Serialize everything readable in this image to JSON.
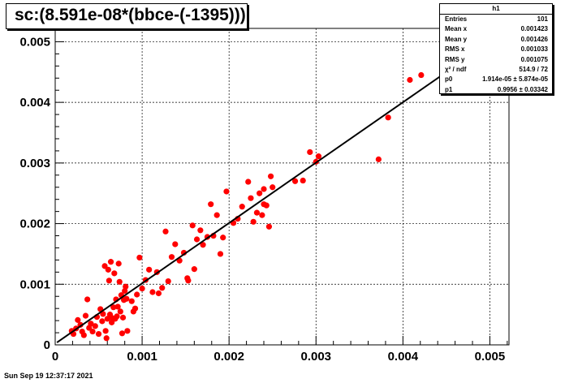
{
  "chart_title": "sc:(8.591e-08*(bbce-(-1395)))",
  "footer": "Sun Sep 19 12:37:17 2021",
  "stats": {
    "title": "h1",
    "rows": [
      {
        "label": "Entries",
        "value": "101"
      },
      {
        "label": "Mean x",
        "value": "0.001423"
      },
      {
        "label": "Mean y",
        "value": "0.001426"
      },
      {
        "label": "RMS x",
        "value": "0.001033"
      },
      {
        "label": "RMS y",
        "value": "0.001075"
      },
      {
        "label": "χ² / ndf",
        "value": "514.9 / 72"
      },
      {
        "label": "p0",
        "value": "1.914e-05 ± 5.874e-05"
      },
      {
        "label": "p1",
        "value": "0.9956 ± 0.03342"
      }
    ]
  },
  "colors": {
    "points": "#ff0000",
    "fit": "#000000"
  },
  "chart_data": {
    "type": "scatter",
    "title": "sc:(8.591e-08*(bbce-(-1395)))",
    "xlabel": "",
    "ylabel": "",
    "xlim": [
      0,
      0.00522
    ],
    "ylim": [
      0,
      0.00522
    ],
    "xticks": [
      "0",
      "0.001",
      "0.002",
      "0.003",
      "0.004",
      "0.005"
    ],
    "yticks": [
      "0",
      "0.001",
      "0.002",
      "0.003",
      "0.004",
      "0.005"
    ],
    "grid": true,
    "legend": "top-right",
    "series": [
      {
        "type": "scatter",
        "points": [
          [
            0.00019,
            0.00023
          ],
          [
            0.00021,
            0.00018
          ],
          [
            0.00024,
            0.00027
          ],
          [
            0.00026,
            0.00041
          ],
          [
            0.00029,
            0.00033
          ],
          [
            0.00031,
            0.00022
          ],
          [
            0.00033,
            0.00016
          ],
          [
            0.00035,
            0.00048
          ],
          [
            0.00037,
            0.00075
          ],
          [
            0.00039,
            0.00028
          ],
          [
            0.00041,
            0.00035
          ],
          [
            0.00043,
            0.00022
          ],
          [
            0.00046,
            0.00031
          ],
          [
            0.00048,
            0.00046
          ],
          [
            0.0005,
            0.00018
          ],
          [
            0.00052,
            0.00059
          ],
          [
            0.00054,
            0.00039
          ],
          [
            0.00055,
            0.00051
          ],
          [
            0.00057,
            0.0013
          ],
          [
            0.00058,
            0.00023
          ],
          [
            0.00059,
            0.00011
          ],
          [
            0.0006,
            0.00043
          ],
          [
            0.00061,
            0.00124
          ],
          [
            0.00062,
            0.00106
          ],
          [
            0.00063,
            0.0005
          ],
          [
            0.00064,
            0.00137
          ],
          [
            0.00065,
            0.00037
          ],
          [
            0.00066,
            0.00044
          ],
          [
            0.00067,
            0.00062
          ],
          [
            0.00068,
            0.00118
          ],
          [
            0.00069,
            0.00043
          ],
          [
            0.0007,
            0.00075
          ],
          [
            0.00071,
            0.00047
          ],
          [
            0.00072,
            0.00063
          ],
          [
            0.00073,
            0.00134
          ],
          [
            0.00074,
            0.00104
          ],
          [
            0.00075,
            0.00055
          ],
          [
            0.00076,
            0.00082
          ],
          [
            0.00077,
            0.00019
          ],
          [
            0.00078,
            0.00045
          ],
          [
            0.00079,
            0.00074
          ],
          [
            0.0008,
            0.00089
          ],
          [
            0.00081,
            0.00096
          ],
          [
            0.00082,
            0.00076
          ],
          [
            0.00083,
            0.00023
          ],
          [
            0.00088,
            0.00072
          ],
          [
            0.0009,
            0.00055
          ],
          [
            0.00092,
            0.0006
          ],
          [
            0.00094,
            0.00083
          ],
          [
            0.00097,
            0.00144
          ],
          [
            0.001,
            0.00093
          ],
          [
            0.00104,
            0.00107
          ],
          [
            0.00108,
            0.00124
          ],
          [
            0.00112,
            0.00087
          ],
          [
            0.00117,
            0.0012
          ],
          [
            0.00119,
            0.00085
          ],
          [
            0.00123,
            0.00094
          ],
          [
            0.00127,
            0.00187
          ],
          [
            0.0013,
            0.00105
          ],
          [
            0.00134,
            0.00145
          ],
          [
            0.00138,
            0.00166
          ],
          [
            0.00143,
            0.00139
          ],
          [
            0.00148,
            0.00152
          ],
          [
            0.00152,
            0.0011
          ],
          [
            0.00153,
            0.00106
          ],
          [
            0.00158,
            0.00197
          ],
          [
            0.0016,
            0.00125
          ],
          [
            0.00163,
            0.00174
          ],
          [
            0.00167,
            0.00189
          ],
          [
            0.0017,
            0.00165
          ],
          [
            0.00175,
            0.00178
          ],
          [
            0.00179,
            0.00232
          ],
          [
            0.00182,
            0.0018
          ],
          [
            0.00186,
            0.00214
          ],
          [
            0.0019,
            0.0015
          ],
          [
            0.00193,
            0.00177
          ],
          [
            0.00197,
            0.00253
          ],
          [
            0.00205,
            0.00201
          ],
          [
            0.0021,
            0.00208
          ],
          [
            0.00215,
            0.00228
          ],
          [
            0.00222,
            0.00269
          ],
          [
            0.00225,
            0.00242
          ],
          [
            0.00228,
            0.00203
          ],
          [
            0.00232,
            0.00218
          ],
          [
            0.00235,
            0.0025
          ],
          [
            0.00238,
            0.00214
          ],
          [
            0.0024,
            0.00257
          ],
          [
            0.00243,
            0.0023
          ],
          [
            0.00246,
            0.00195
          ],
          [
            0.00248,
            0.00278
          ],
          [
            0.0025,
            0.0026
          ],
          [
            0.00276,
            0.0027
          ],
          [
            0.00285,
            0.00271
          ],
          [
            0.00293,
            0.00318
          ],
          [
            0.003,
            0.00302
          ],
          [
            0.00303,
            0.00311
          ],
          [
            0.00372,
            0.00306
          ],
          [
            0.00383,
            0.00375
          ],
          [
            0.00408,
            0.00437
          ],
          [
            0.00421,
            0.00445
          ],
          [
            0.0024,
            0.00232
          ]
        ]
      },
      {
        "type": "line",
        "fit": {
          "p0": 1.914e-05,
          "p1": 0.9956
        },
        "x": [
          2e-05,
          0.0052
        ]
      }
    ]
  }
}
